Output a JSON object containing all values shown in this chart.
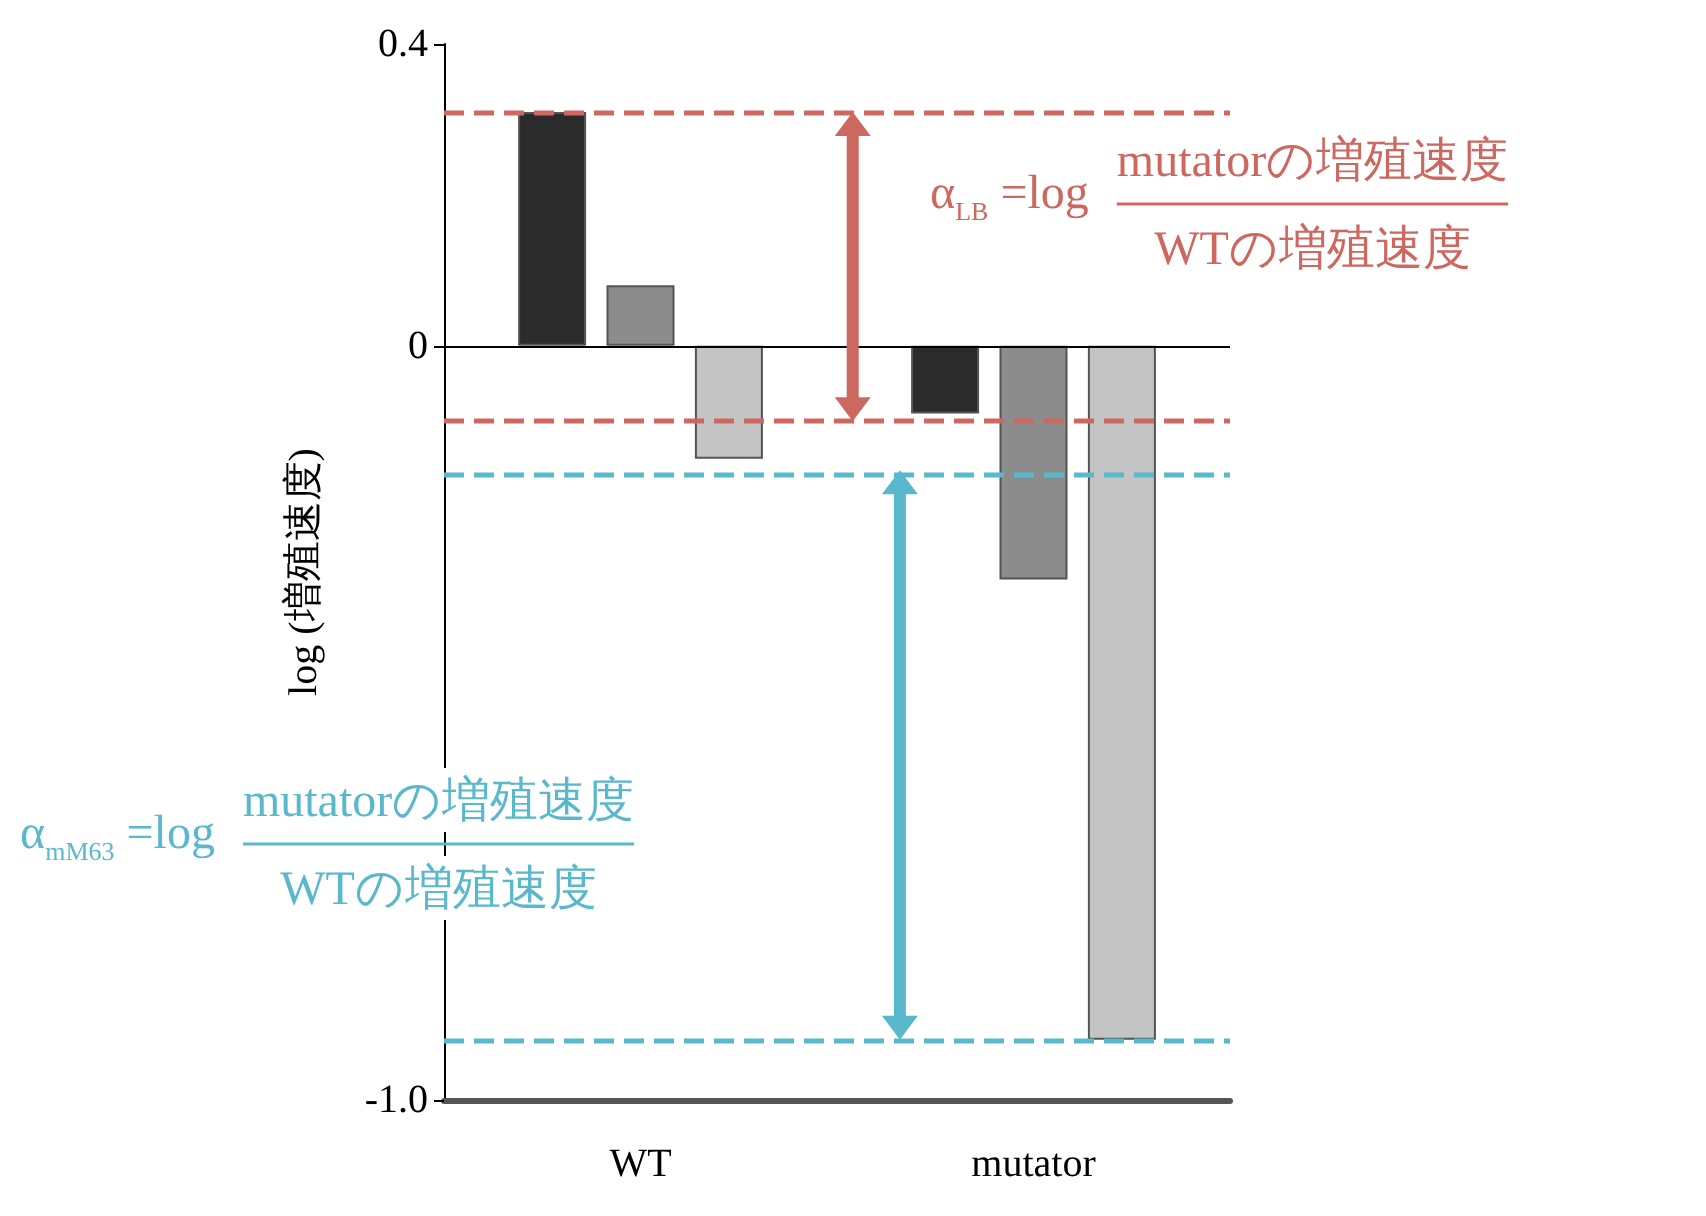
{
  "chart_data": {
    "type": "bar",
    "ylabel": "log (増殖速度)",
    "categories": [
      "WT",
      "mutator"
    ],
    "series": [
      {
        "color": "#2b2b2b",
        "values": [
          0.31,
          -0.09
        ]
      },
      {
        "color": "#8c8c8c",
        "values": [
          0.08,
          -0.31
        ]
      },
      {
        "color": "#c4c4c4",
        "values": [
          -0.15,
          -0.92
        ]
      }
    ],
    "ylim": [
      -1.0,
      0.4
    ],
    "yticks": [
      0.4,
      0,
      {
        "value": -1.0,
        "label": "-1.0"
      }
    ],
    "ref_lines": [
      {
        "axis": "y",
        "value": 0,
        "color": "#000000",
        "line_style": "solid"
      },
      {
        "axis": "y",
        "value": 0.31,
        "color": "#cd6860",
        "line_style": "dashed"
      },
      {
        "axis": "y",
        "value": -0.1,
        "color": "#cd6860",
        "line_style": "dashed"
      },
      {
        "axis": "y",
        "value": -0.165,
        "color": "#5ab8cc",
        "line_style": "dashed"
      },
      {
        "axis": "y",
        "value": -0.92,
        "color": "#5ab8cc",
        "line_style": "dashed"
      }
    ],
    "annotations": [
      "α$_{LB}$ =log",
      "mutatorの増殖速度",
      "WTの増殖速度",
      "α$_{mM63}$ =log",
      "mutatorの増殖速度",
      "WTの増殖速度"
    ],
    "grid": false
  }
}
